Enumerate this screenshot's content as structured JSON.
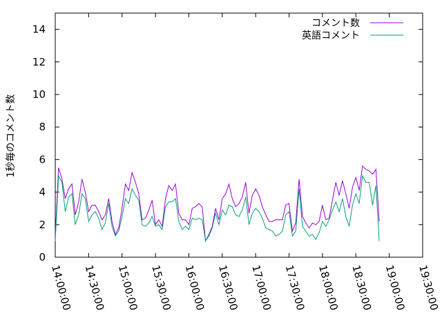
{
  "chart_data": {
    "type": "line",
    "xlabel": "",
    "ylabel": "1秒毎のコメント数",
    "ylim": [
      0,
      15
    ],
    "xlim": [
      "14:00:00",
      "19:30:00"
    ],
    "yticks": [
      0,
      2,
      4,
      6,
      8,
      10,
      12,
      14
    ],
    "xticks": [
      "14:00:00",
      "14:30:00",
      "15:00:00",
      "15:30:00",
      "16:00:00",
      "16:30:00",
      "17:00:00",
      "17:30:00",
      "18:00:00",
      "18:30:00",
      "19:00:00",
      "19:30:00"
    ],
    "legend_position": "top-right",
    "grid": false,
    "series": [
      {
        "name": "コメント数",
        "color": "#9400d3",
        "points": [
          [
            "14:00:00",
            1.3
          ],
          [
            "14:03:00",
            5.5
          ],
          [
            "14:06:00",
            4.8
          ],
          [
            "14:09:00",
            3.6
          ],
          [
            "14:12:00",
            4.2
          ],
          [
            "14:15:00",
            4.5
          ],
          [
            "14:18:00",
            2.6
          ],
          [
            "14:21:00",
            3.4
          ],
          [
            "14:24:00",
            4.8
          ],
          [
            "14:27:00",
            4.0
          ],
          [
            "14:30:00",
            2.8
          ],
          [
            "14:33:00",
            3.2
          ],
          [
            "14:36:00",
            3.2
          ],
          [
            "14:39:00",
            2.8
          ],
          [
            "14:42:00",
            2.3
          ],
          [
            "14:45:00",
            2.6
          ],
          [
            "14:48:00",
            3.6
          ],
          [
            "14:51:00",
            2.2
          ],
          [
            "14:54:00",
            1.4
          ],
          [
            "14:57:00",
            1.8
          ],
          [
            "15:00:00",
            3.0
          ],
          [
            "15:03:00",
            4.5
          ],
          [
            "15:06:00",
            4.1
          ],
          [
            "15:09:00",
            5.2
          ],
          [
            "15:12:00",
            4.6
          ],
          [
            "15:15:00",
            3.9
          ],
          [
            "15:18:00",
            2.3
          ],
          [
            "15:21:00",
            2.4
          ],
          [
            "15:24:00",
            2.9
          ],
          [
            "15:27:00",
            3.5
          ],
          [
            "15:30:00",
            2.0
          ],
          [
            "15:33:00",
            2.3
          ],
          [
            "15:36:00",
            1.9
          ],
          [
            "15:39:00",
            3.6
          ],
          [
            "15:42:00",
            4.4
          ],
          [
            "15:45:00",
            4.1
          ],
          [
            "15:48:00",
            4.5
          ],
          [
            "15:51:00",
            2.7
          ],
          [
            "15:54:00",
            2.3
          ],
          [
            "15:57:00",
            2.3
          ],
          [
            "16:00:00",
            2.0
          ],
          [
            "16:03:00",
            3.0
          ],
          [
            "16:06:00",
            3.1
          ],
          [
            "16:09:00",
            3.3
          ],
          [
            "16:12:00",
            3.1
          ],
          [
            "16:15:00",
            1.0
          ],
          [
            "16:18:00",
            1.4
          ],
          [
            "16:21:00",
            1.9
          ],
          [
            "16:24:00",
            3.0
          ],
          [
            "16:27:00",
            2.3
          ],
          [
            "16:30:00",
            3.6
          ],
          [
            "16:33:00",
            3.9
          ],
          [
            "16:36:00",
            4.5
          ],
          [
            "16:39:00",
            3.6
          ],
          [
            "16:42:00",
            3.1
          ],
          [
            "16:45:00",
            3.3
          ],
          [
            "16:48:00",
            3.7
          ],
          [
            "16:51:00",
            4.6
          ],
          [
            "16:54:00",
            2.7
          ],
          [
            "16:57:00",
            3.8
          ],
          [
            "17:00:00",
            4.2
          ],
          [
            "17:03:00",
            3.8
          ],
          [
            "17:06:00",
            3.1
          ],
          [
            "17:09:00",
            2.6
          ],
          [
            "17:12:00",
            2.2
          ],
          [
            "17:15:00",
            2.2
          ],
          [
            "17:18:00",
            2.3
          ],
          [
            "17:21:00",
            2.3
          ],
          [
            "17:24:00",
            2.3
          ],
          [
            "17:27:00",
            3.2
          ],
          [
            "17:30:00",
            3.3
          ],
          [
            "17:33:00",
            1.6
          ],
          [
            "17:36:00",
            2.1
          ],
          [
            "17:39:00",
            4.8
          ],
          [
            "17:42:00",
            2.5
          ],
          [
            "17:45:00",
            2.1
          ],
          [
            "17:48:00",
            1.8
          ],
          [
            "17:51:00",
            2.1
          ],
          [
            "17:54:00",
            2.0
          ],
          [
            "17:57:00",
            2.2
          ],
          [
            "18:00:00",
            3.2
          ],
          [
            "18:03:00",
            2.3
          ],
          [
            "18:06:00",
            2.4
          ],
          [
            "18:09:00",
            3.5
          ],
          [
            "18:12:00",
            4.6
          ],
          [
            "18:15:00",
            3.8
          ],
          [
            "18:18:00",
            4.7
          ],
          [
            "18:21:00",
            3.9
          ],
          [
            "18:24:00",
            3.0
          ],
          [
            "18:27:00",
            4.3
          ],
          [
            "18:30:00",
            4.9
          ],
          [
            "18:33:00",
            4.1
          ],
          [
            "18:36:00",
            5.6
          ],
          [
            "18:39:00",
            5.4
          ],
          [
            "18:42:00",
            5.3
          ],
          [
            "18:45:00",
            5.1
          ],
          [
            "18:48:00",
            5.4
          ],
          [
            "18:51:00",
            2.2
          ]
        ]
      },
      {
        "name": "英語コメント",
        "color": "#009e73",
        "points": [
          [
            "14:00:00",
            1.0
          ],
          [
            "14:03:00",
            5.0
          ],
          [
            "14:06:00",
            4.6
          ],
          [
            "14:09:00",
            2.8
          ],
          [
            "14:12:00",
            3.7
          ],
          [
            "14:15:00",
            3.9
          ],
          [
            "14:18:00",
            2.0
          ],
          [
            "14:21:00",
            2.6
          ],
          [
            "14:24:00",
            3.9
          ],
          [
            "14:27:00",
            3.6
          ],
          [
            "14:30:00",
            2.2
          ],
          [
            "14:33:00",
            2.6
          ],
          [
            "14:36:00",
            2.8
          ],
          [
            "14:39:00",
            2.4
          ],
          [
            "14:42:00",
            1.7
          ],
          [
            "14:45:00",
            2.1
          ],
          [
            "14:48:00",
            3.3
          ],
          [
            "14:51:00",
            1.9
          ],
          [
            "14:54:00",
            1.3
          ],
          [
            "14:57:00",
            1.6
          ],
          [
            "15:00:00",
            2.5
          ],
          [
            "15:03:00",
            3.6
          ],
          [
            "15:06:00",
            3.3
          ],
          [
            "15:09:00",
            4.2
          ],
          [
            "15:12:00",
            3.8
          ],
          [
            "15:15:00",
            3.5
          ],
          [
            "15:18:00",
            2.0
          ],
          [
            "15:21:00",
            1.9
          ],
          [
            "15:24:00",
            2.1
          ],
          [
            "15:27:00",
            2.5
          ],
          [
            "15:30:00",
            1.9
          ],
          [
            "15:33:00",
            2.0
          ],
          [
            "15:36:00",
            1.7
          ],
          [
            "15:39:00",
            3.1
          ],
          [
            "15:42:00",
            3.4
          ],
          [
            "15:45:00",
            3.4
          ],
          [
            "15:48:00",
            3.6
          ],
          [
            "15:51:00",
            2.2
          ],
          [
            "15:54:00",
            1.7
          ],
          [
            "15:57:00",
            1.9
          ],
          [
            "16:00:00",
            1.7
          ],
          [
            "16:03:00",
            2.4
          ],
          [
            "16:06:00",
            2.3
          ],
          [
            "16:09:00",
            2.4
          ],
          [
            "16:12:00",
            2.3
          ],
          [
            "16:15:00",
            1.0
          ],
          [
            "16:18:00",
            1.3
          ],
          [
            "16:21:00",
            1.8
          ],
          [
            "16:24:00",
            2.7
          ],
          [
            "16:27:00",
            2.0
          ],
          [
            "16:30:00",
            2.9
          ],
          [
            "16:33:00",
            2.6
          ],
          [
            "16:36:00",
            3.2
          ],
          [
            "16:39:00",
            3.1
          ],
          [
            "16:42:00",
            2.6
          ],
          [
            "16:45:00",
            2.5
          ],
          [
            "16:48:00",
            2.9
          ],
          [
            "16:51:00",
            3.7
          ],
          [
            "16:54:00",
            2.0
          ],
          [
            "16:57:00",
            2.7
          ],
          [
            "17:00:00",
            3.0
          ],
          [
            "17:03:00",
            2.8
          ],
          [
            "17:06:00",
            2.4
          ],
          [
            "17:09:00",
            1.8
          ],
          [
            "17:12:00",
            1.7
          ],
          [
            "17:15:00",
            1.6
          ],
          [
            "17:18:00",
            1.3
          ],
          [
            "17:21:00",
            1.4
          ],
          [
            "17:24:00",
            1.6
          ],
          [
            "17:27:00",
            2.6
          ],
          [
            "17:30:00",
            2.8
          ],
          [
            "17:33:00",
            1.3
          ],
          [
            "17:36:00",
            1.6
          ],
          [
            "17:39:00",
            4.2
          ],
          [
            "17:42:00",
            1.9
          ],
          [
            "17:45:00",
            1.6
          ],
          [
            "17:48:00",
            1.3
          ],
          [
            "17:51:00",
            1.4
          ],
          [
            "17:54:00",
            1.1
          ],
          [
            "17:57:00",
            1.5
          ],
          [
            "18:00:00",
            2.2
          ],
          [
            "18:03:00",
            1.9
          ],
          [
            "18:06:00",
            2.3
          ],
          [
            "18:09:00",
            2.9
          ],
          [
            "18:12:00",
            3.4
          ],
          [
            "18:15:00",
            2.8
          ],
          [
            "18:18:00",
            3.6
          ],
          [
            "18:21:00",
            2.5
          ],
          [
            "18:24:00",
            1.9
          ],
          [
            "18:27:00",
            3.2
          ],
          [
            "18:30:00",
            3.9
          ],
          [
            "18:33:00",
            3.3
          ],
          [
            "18:36:00",
            5.0
          ],
          [
            "18:39:00",
            4.6
          ],
          [
            "18:42:00",
            4.6
          ],
          [
            "18:45:00",
            3.2
          ],
          [
            "18:48:00",
            4.4
          ],
          [
            "18:51:00",
            1.0
          ]
        ]
      }
    ]
  }
}
